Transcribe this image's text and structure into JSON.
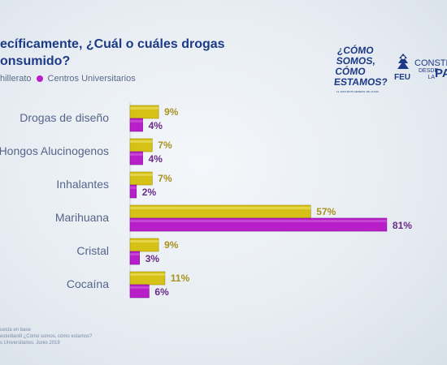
{
  "slide": {
    "title": "ecíficamente, ¿Cuál o cuáles drogas\nonsumido?",
    "logo": {
      "line1": "¿CÓMO\nSOMOS,\nCÓMO\nESTAMOS?",
      "subtitle": "1a. ENCUESTA GENERAL DE LA FEU",
      "feu": "FEU",
      "constr": "CONSTR",
      "desde": "DESDE\nLA",
      "pa": "PA"
    },
    "footnotes": "uesta en base\nestudiantil ¿Cómo somos, cómo estamos?\ns Universitarios. Junio 2019"
  },
  "colors": {
    "series1": "#d6c216",
    "series1_dark": "#a08f0a",
    "series2": "#b81fc8",
    "series2_dark": "#7d1296",
    "label1": "#a89220",
    "label2": "#6a2a86",
    "category": "#55658a"
  },
  "chart_data": {
    "type": "bar",
    "orientation": "horizontal",
    "categories": [
      "Drogas de diseño",
      "Hongos Alucinogenos",
      "Inhalantes",
      "Marihuana",
      "Cristal",
      "Cocaína"
    ],
    "series": [
      {
        "name": "hillerato",
        "values": [
          9,
          7,
          7,
          57,
          9,
          11
        ],
        "labels": [
          "9%",
          "7%",
          "7%",
          "57%",
          "9%",
          "11%"
        ]
      },
      {
        "name": "Centros Universitarios",
        "values": [
          4,
          4,
          2,
          81,
          3,
          6
        ],
        "labels": [
          "4%",
          "4%",
          "2%",
          "81%",
          "3%",
          "6%"
        ]
      }
    ],
    "xlim": [
      0,
      100
    ],
    "legend_position": "top-left",
    "grid": false
  }
}
